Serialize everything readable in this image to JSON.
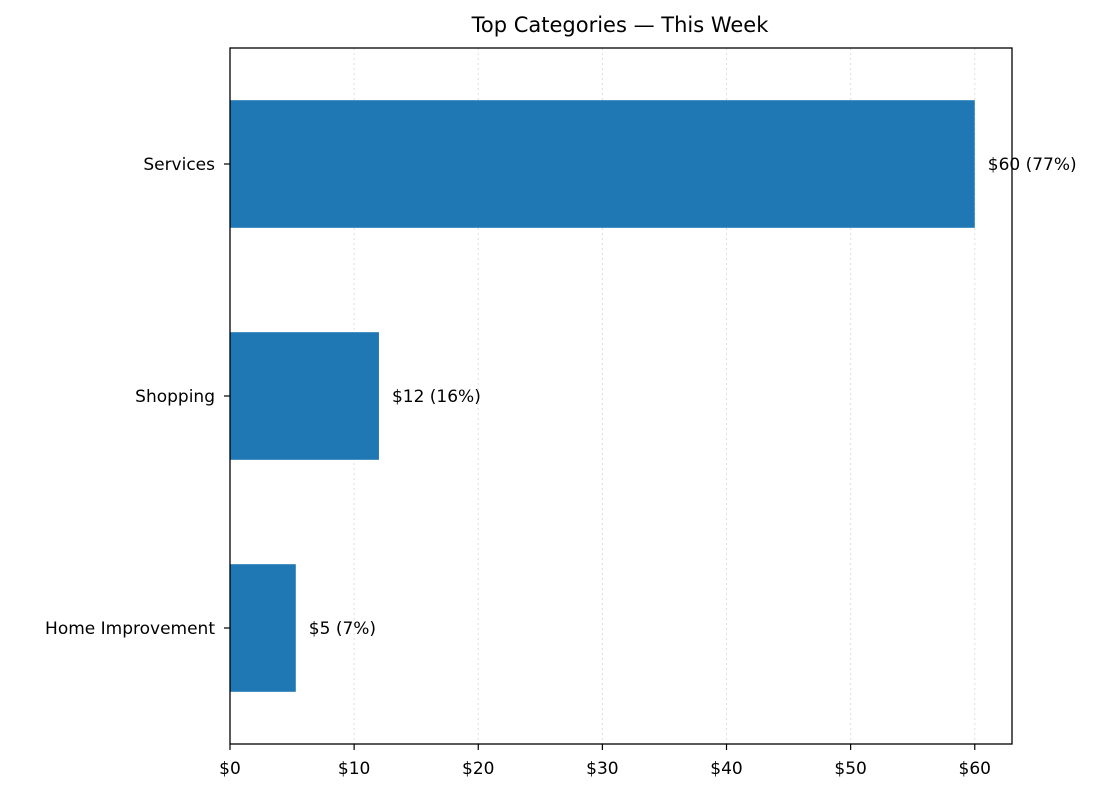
{
  "chart_data": {
    "type": "bar",
    "orientation": "horizontal",
    "title": "Top Categories — This Week",
    "xlabel": "",
    "ylabel": "",
    "categories": [
      "Services",
      "Shopping",
      "Home Improvement"
    ],
    "values": [
      60,
      12,
      5.3
    ],
    "value_labels": [
      "$60  (77%)",
      "$12  (16%)",
      "$5  (7%)"
    ],
    "xlim": [
      0,
      63
    ],
    "xticks": [
      0,
      10,
      20,
      30,
      40,
      50,
      60
    ],
    "xtick_labels": [
      "$0",
      "$10",
      "$20",
      "$30",
      "$40",
      "$50",
      "$60"
    ],
    "grid": "x-dotted",
    "legend": "none",
    "colors": {
      "bar": "#1f77b4",
      "grid": "#dddddd",
      "axis": "#000000"
    }
  }
}
